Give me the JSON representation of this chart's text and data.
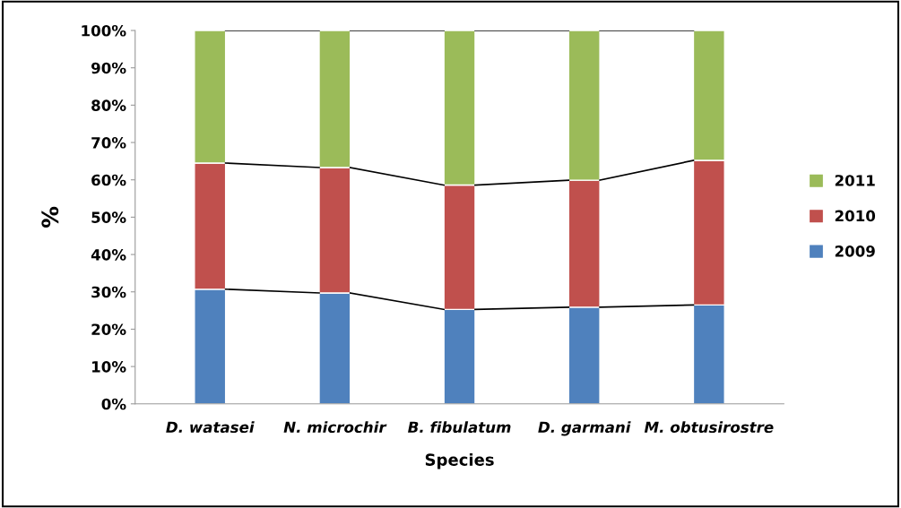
{
  "chart_data": {
    "type": "bar",
    "stacked": true,
    "xlabel": "Species",
    "ylabel": "%",
    "categories": [
      "D. watasei",
      "N. microchir",
      "B. fibulatum",
      "D. garmani",
      "M. obtusirostre"
    ],
    "series": [
      {
        "name": "2009",
        "color": "#4f81bd",
        "values": [
          30.7,
          29.7,
          25.3,
          25.9,
          26.5
        ]
      },
      {
        "name": "2010",
        "color": "#c0504d",
        "values": [
          33.8,
          33.6,
          33.3,
          34.0,
          38.7
        ]
      },
      {
        "name": "2011",
        "color": "#9bbb59",
        "values": [
          35.5,
          36.7,
          41.4,
          40.1,
          34.8
        ]
      }
    ],
    "ylim": [
      0,
      100
    ],
    "yticks": [
      {
        "value": 0,
        "label": "0%"
      },
      {
        "value": 10,
        "label": "10%"
      },
      {
        "value": 20,
        "label": "20%"
      },
      {
        "value": 30,
        "label": "30%"
      },
      {
        "value": 40,
        "label": "40%"
      },
      {
        "value": 50,
        "label": "50%"
      },
      {
        "value": 60,
        "label": "60%"
      },
      {
        "value": 70,
        "label": "70%"
      },
      {
        "value": 80,
        "label": "80%"
      },
      {
        "value": 90,
        "label": "90%"
      },
      {
        "value": 100,
        "label": "100%"
      }
    ],
    "grid": false,
    "legend": "right"
  }
}
